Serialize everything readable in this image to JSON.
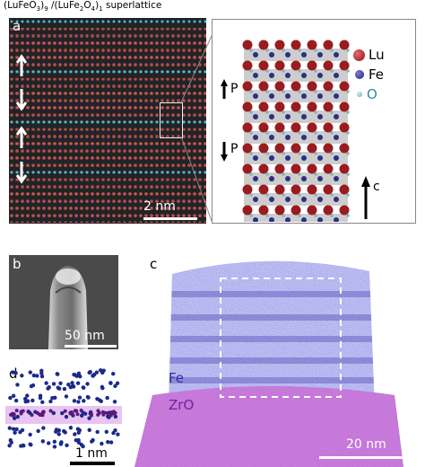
{
  "title": {
    "part1": "(LuFeO",
    "sub1": "3",
    "part2": ")",
    "sub2": "9",
    "part3": " /(LuFe",
    "sub3": "2",
    "part4": "O",
    "sub4": "4",
    "part5": ")",
    "sub5": "1",
    "part6": " superlattice"
  },
  "panels": {
    "a": {
      "letter": "a",
      "scale_label": "2 nm"
    },
    "b": {
      "letter": "b",
      "scale_label": "50 nm"
    },
    "c": {
      "letter": "c",
      "scale_label": "20 nm",
      "label_fe": "Fe",
      "label_zro": "ZrO"
    },
    "d": {
      "letter": "d",
      "scale_label": "1 nm"
    }
  },
  "structure": {
    "legend": [
      {
        "symbol": "Lu",
        "color": "#9b1b1f"
      },
      {
        "symbol": "Fe",
        "color": "#2c2f86"
      },
      {
        "symbol": "O",
        "color": "#7fb7c0"
      }
    ],
    "polarization_label": "P",
    "axis_label": "c"
  },
  "colors": {
    "haadf_red": "#c0443c",
    "haadf_cyan": "#3fb6c4",
    "fe_blue": "#5a58c8",
    "zro_purple": "#a046c0"
  }
}
